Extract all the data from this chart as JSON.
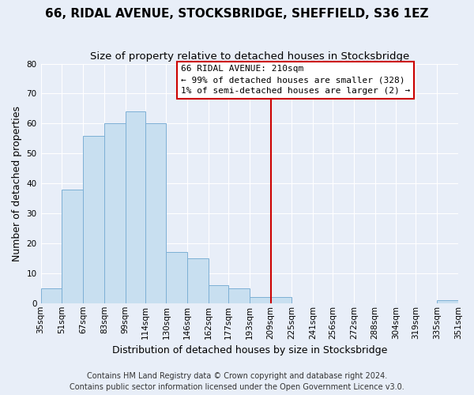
{
  "title": "66, RIDAL AVENUE, STOCKSBRIDGE, SHEFFIELD, S36 1EZ",
  "subtitle": "Size of property relative to detached houses in Stocksbridge",
  "xlabel": "Distribution of detached houses by size in Stocksbridge",
  "ylabel": "Number of detached properties",
  "footer_line1": "Contains HM Land Registry data © Crown copyright and database right 2024.",
  "footer_line2": "Contains public sector information licensed under the Open Government Licence v3.0.",
  "bar_edges": [
    35,
    51,
    67,
    83,
    99,
    114,
    130,
    146,
    162,
    177,
    193,
    209,
    225,
    241,
    256,
    272,
    288,
    304,
    319,
    335,
    351
  ],
  "bar_heights": [
    5,
    38,
    56,
    60,
    64,
    60,
    17,
    15,
    6,
    5,
    2,
    2,
    0,
    0,
    0,
    0,
    0,
    0,
    0,
    1
  ],
  "bar_color": "#c8dff0",
  "bar_edgecolor": "#7db0d5",
  "vline_x": 209,
  "vline_color": "#cc0000",
  "annotation_title": "66 RIDAL AVENUE: 210sqm",
  "annotation_line1": "← 99% of detached houses are smaller (328)",
  "annotation_line2": "1% of semi-detached houses are larger (2) →",
  "annotation_box_edgecolor": "#cc0000",
  "annotation_box_facecolor": "#ffffff",
  "ylim": [
    0,
    80
  ],
  "yticks": [
    0,
    10,
    20,
    30,
    40,
    50,
    60,
    70,
    80
  ],
  "tick_labels": [
    "35sqm",
    "51sqm",
    "67sqm",
    "83sqm",
    "99sqm",
    "114sqm",
    "130sqm",
    "146sqm",
    "162sqm",
    "177sqm",
    "193sqm",
    "209sqm",
    "225sqm",
    "241sqm",
    "256sqm",
    "272sqm",
    "288sqm",
    "304sqm",
    "319sqm",
    "335sqm",
    "351sqm"
  ],
  "background_color": "#e8eef8",
  "plot_bg_color": "#e8eef8",
  "grid_color": "#ffffff",
  "title_fontsize": 11,
  "subtitle_fontsize": 9.5,
  "axis_label_fontsize": 9,
  "tick_fontsize": 7.5,
  "footer_fontsize": 7
}
